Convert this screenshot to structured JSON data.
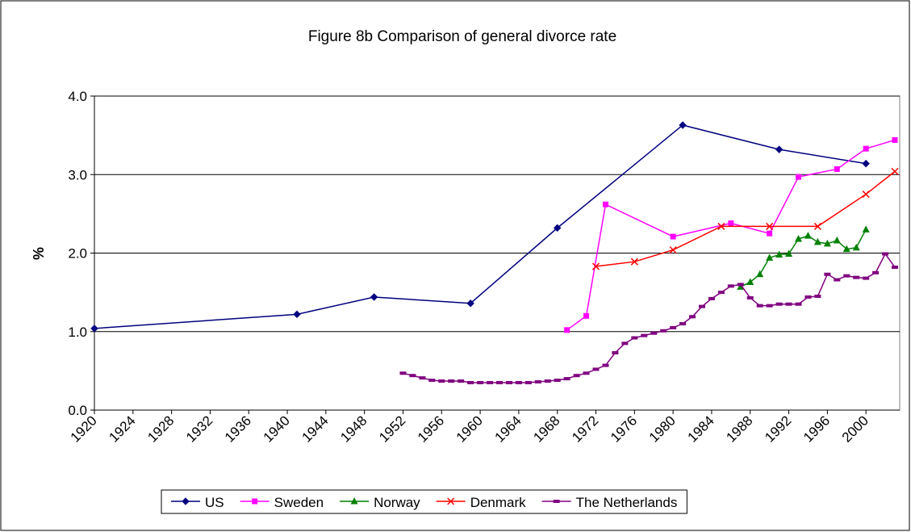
{
  "chart_data": {
    "type": "line",
    "title": "Figure 8b Comparison of general divorce rate",
    "y_label": "%",
    "xlim": [
      1920,
      2003.5
    ],
    "xticks": [
      1920,
      1924,
      1928,
      1932,
      1936,
      1940,
      1944,
      1948,
      1952,
      1956,
      1960,
      1964,
      1968,
      1972,
      1976,
      1980,
      1984,
      1988,
      1992,
      1996,
      2000
    ],
    "ylim": [
      0,
      4
    ],
    "yticks": [
      {
        "value": 0,
        "label": "0.0"
      },
      {
        "value": 1,
        "label": "1.0"
      },
      {
        "value": 2,
        "label": "2.0"
      },
      {
        "value": 3,
        "label": "3.0"
      },
      {
        "value": 4,
        "label": "4.0"
      }
    ],
    "grid": true,
    "legend": "bottom",
    "series": [
      {
        "name": "US",
        "color": "#000080",
        "marker": "diamond",
        "x": [
          1920,
          1941,
          1949,
          1959,
          1968,
          1981,
          1991,
          2000
        ],
        "values": [
          1.04,
          1.22,
          1.44,
          1.36,
          2.32,
          3.63,
          3.32,
          3.14
        ]
      },
      {
        "name": "Sweden",
        "color": "#ff00ff",
        "marker": "square",
        "x": [
          1969,
          1971,
          1973,
          1980,
          1986,
          1990,
          1993,
          1997,
          2000,
          2003
        ],
        "values": [
          1.02,
          1.2,
          2.62,
          2.21,
          2.38,
          2.25,
          2.97,
          3.07,
          3.33,
          3.44
        ]
      },
      {
        "name": "Norway",
        "color": "#008000",
        "marker": "triangle",
        "x": [
          1987,
          1988,
          1989,
          1990,
          1991,
          1992,
          1993,
          1994,
          1995,
          1996,
          1997,
          1998,
          1999,
          2000
        ],
        "values": [
          1.57,
          1.63,
          1.73,
          1.94,
          1.98,
          1.99,
          2.18,
          2.22,
          2.14,
          2.12,
          2.16,
          2.05,
          2.07,
          2.3
        ]
      },
      {
        "name": "Denmark",
        "color": "#ff0000",
        "marker": "cross",
        "x": [
          1972,
          1976,
          1980,
          1985,
          1990,
          1995,
          2000,
          2003
        ],
        "values": [
          1.83,
          1.89,
          2.04,
          2.34,
          2.34,
          2.34,
          2.75,
          3.04
        ]
      },
      {
        "name": "The Netherlands",
        "color": "#800080",
        "marker": "dash",
        "x": [
          1952,
          1953,
          1954,
          1955,
          1956,
          1957,
          1958,
          1959,
          1960,
          1961,
          1962,
          1963,
          1964,
          1965,
          1966,
          1967,
          1968,
          1969,
          1970,
          1971,
          1972,
          1973,
          1974,
          1975,
          1976,
          1977,
          1978,
          1979,
          1980,
          1981,
          1982,
          1983,
          1984,
          1985,
          1986,
          1987,
          1988,
          1989,
          1990,
          1991,
          1992,
          1993,
          1994,
          1995,
          1996,
          1997,
          1998,
          1999,
          2000,
          2001,
          2002,
          2003
        ],
        "values": [
          0.47,
          0.44,
          0.41,
          0.38,
          0.37,
          0.37,
          0.37,
          0.35,
          0.35,
          0.35,
          0.35,
          0.35,
          0.35,
          0.35,
          0.36,
          0.37,
          0.38,
          0.4,
          0.44,
          0.47,
          0.52,
          0.57,
          0.73,
          0.85,
          0.92,
          0.95,
          0.98,
          1.01,
          1.05,
          1.1,
          1.19,
          1.32,
          1.42,
          1.5,
          1.58,
          1.6,
          1.43,
          1.33,
          1.33,
          1.35,
          1.35,
          1.35,
          1.44,
          1.45,
          1.73,
          1.66,
          1.71,
          1.69,
          1.68,
          1.75,
          1.99,
          1.82
        ]
      }
    ]
  }
}
